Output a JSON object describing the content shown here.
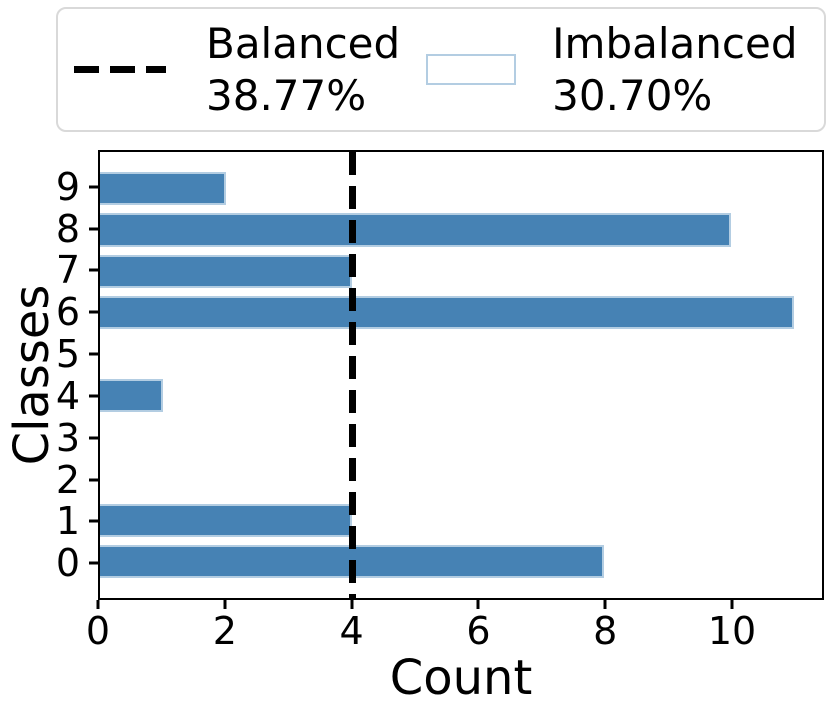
{
  "figure": {
    "background": "#ffffff"
  },
  "legend": {
    "position": "top",
    "border_color": "#d9d9d9",
    "entries": [
      {
        "label": "Balanced",
        "value": "38.77%",
        "swatch": "dashed-line",
        "swatch_color": "#000000"
      },
      {
        "label": "Imbalanced",
        "value": "30.70%",
        "swatch": "filled-bar",
        "swatch_color": "#4682B4"
      }
    ]
  },
  "chart_data": {
    "type": "bar",
    "orientation": "horizontal",
    "title": "",
    "xlabel": "Count",
    "ylabel": "Classes",
    "categories": [
      "0",
      "1",
      "2",
      "3",
      "4",
      "5",
      "6",
      "7",
      "8",
      "9"
    ],
    "series": [
      {
        "name": "Imbalanced 30.70%",
        "values": [
          8,
          4,
          0,
          0,
          1,
          0,
          11,
          4,
          10,
          2
        ]
      }
    ],
    "x_tick_labels": [
      "0",
      "2",
      "4",
      "6",
      "8",
      "10"
    ],
    "x_tick_values": [
      0,
      2,
      4,
      6,
      8,
      10
    ],
    "xlim": [
      0,
      11.45
    ],
    "category_axis_margin": 0.88,
    "bar_height_fraction": 0.8,
    "grid": false,
    "bar_color": "#4682B4",
    "bar_edge_color": "#b3cde2",
    "reference_line": {
      "name": "Balanced 38.77%",
      "value": 4,
      "style": "dashed",
      "color": "#000000"
    }
  }
}
